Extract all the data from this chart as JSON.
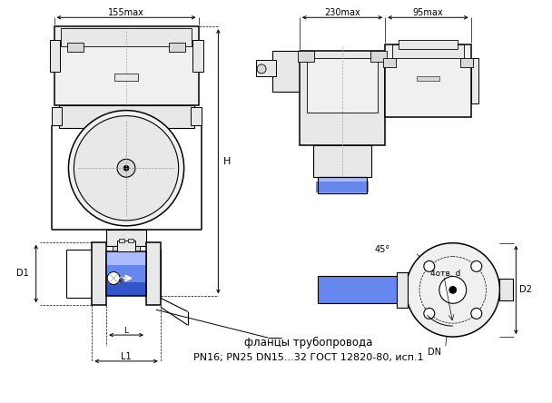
{
  "bg_color": "#ffffff",
  "lc": "#000000",
  "blue1": "#3355cc",
  "blue2": "#6688ee",
  "blue3": "#aabbff",
  "gray1": "#d8d8d8",
  "gray2": "#e8e8e8",
  "gray3": "#f0f0f0",
  "dim_155": "155max",
  "dim_230": "230max",
  "dim_95": "95max",
  "label_H": "H",
  "label_D1": "D1",
  "label_L1": "L1",
  "label_D2": "D2",
  "label_DN": "DN",
  "label_45": "45°",
  "label_4otv": "4отв. d",
  "text_main": "фланцы трубопровода",
  "text_sub": "PN16; PN25 DN15...32 ГОСТ 12820-80, исп.1"
}
